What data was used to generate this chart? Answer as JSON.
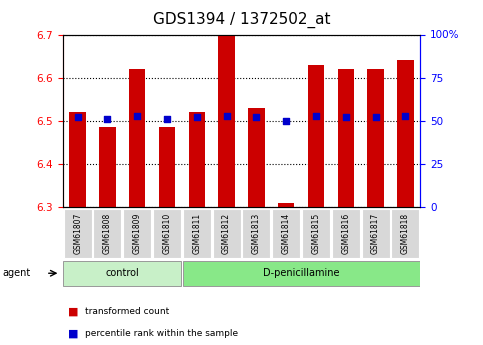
{
  "title": "GDS1394 / 1372502_at",
  "samples": [
    "GSM61807",
    "GSM61808",
    "GSM61809",
    "GSM61810",
    "GSM61811",
    "GSM61812",
    "GSM61813",
    "GSM61814",
    "GSM61815",
    "GSM61816",
    "GSM61817",
    "GSM61818"
  ],
  "bar_tops": [
    6.52,
    6.485,
    6.62,
    6.485,
    6.52,
    6.7,
    6.53,
    6.31,
    6.63,
    6.62,
    6.62,
    6.64
  ],
  "bar_bottom": 6.3,
  "percentile_ranks": [
    52,
    51,
    53,
    51,
    52,
    53,
    52,
    50,
    53,
    52,
    52,
    53
  ],
  "bar_color": "#cc0000",
  "dot_color": "#0000cc",
  "ylim": [
    6.3,
    6.7
  ],
  "yticks": [
    6.3,
    6.4,
    6.5,
    6.6,
    6.7
  ],
  "ylim_right": [
    0,
    100
  ],
  "yticks_right": [
    0,
    25,
    50,
    75,
    100
  ],
  "ytick_labels_right": [
    "0",
    "25",
    "50",
    "75",
    "100%"
  ],
  "control_samples": 4,
  "group_labels": [
    "control",
    "D-penicillamine"
  ],
  "legend_items": [
    "transformed count",
    "percentile rank within the sample"
  ],
  "background_plot": "#ffffff",
  "background_control": "#c8f0c8",
  "background_dpen": "#88e888",
  "agent_label": "agent",
  "title_fontsize": 11,
  "tick_fontsize": 7.5,
  "bar_width": 0.55
}
